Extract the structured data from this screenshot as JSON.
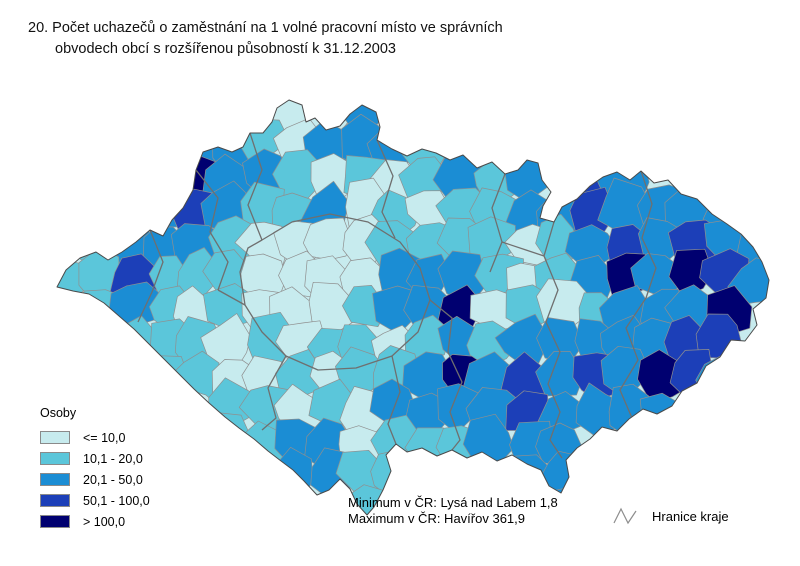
{
  "title": {
    "line1": "20. Počet uchazečů o zaměstnání na 1 volné pracovní místo ve správních",
    "line2": "obvodech obcí s rozšířenou působností k 31.12.2003"
  },
  "legend": {
    "title": "Osoby",
    "classes": [
      {
        "label": "<= 10,0",
        "color": "#C7EBEE"
      },
      {
        "label": "10,1 - 20,0",
        "color": "#5BC6DA"
      },
      {
        "label": "20,1 - 50,0",
        "color": "#1B8DD4"
      },
      {
        "label": "50,1 - 100,0",
        "color": "#1C3FB8"
      },
      {
        "label": "> 100,0",
        "color": "#000070"
      }
    ]
  },
  "annotations": {
    "minimum": "Minimum v ČR: Lysá nad Labem 1,8",
    "maximum": "Maximum v ČR: Havířov 361,9"
  },
  "boundary_legend": {
    "label": "Hranice kraje"
  },
  "chart_data": {
    "type": "choropleth-map",
    "region": "Czech Republic (ORP districts)",
    "unit": "Osoby",
    "date": "31.12.2003",
    "class_breaks": [
      "<= 10,0",
      "10,1 - 20,0",
      "20,1 - 50,0",
      "50,1 - 100,0",
      "> 100,0"
    ],
    "class_colors": [
      "#C7EBEE",
      "#5BC6DA",
      "#1B8DD4",
      "#1C3FB8",
      "#000070"
    ],
    "minimum": {
      "place": "Lysá nad Labem",
      "value": 1.8
    },
    "maximum": {
      "place": "Havířov",
      "value": 361.9
    },
    "grid_bbox": [
      50,
      95,
      775,
      525
    ],
    "class_grid": {
      "cols": 22,
      "rows": [
        ".......002............",
        "....2210222112........",
        "...242210101212.32....",
        "...232112010112232222.",
        ".122210000111101232322",
        "1131110000222101242432",
        ".12101000122401012224.",
        "..1110101101212222233.",
        "..1110010112423232432.",
        "....011010222232222...",
        ".....11220111222......",
        ".......2211...22......",
        ".........1.....2......"
      ]
    }
  }
}
